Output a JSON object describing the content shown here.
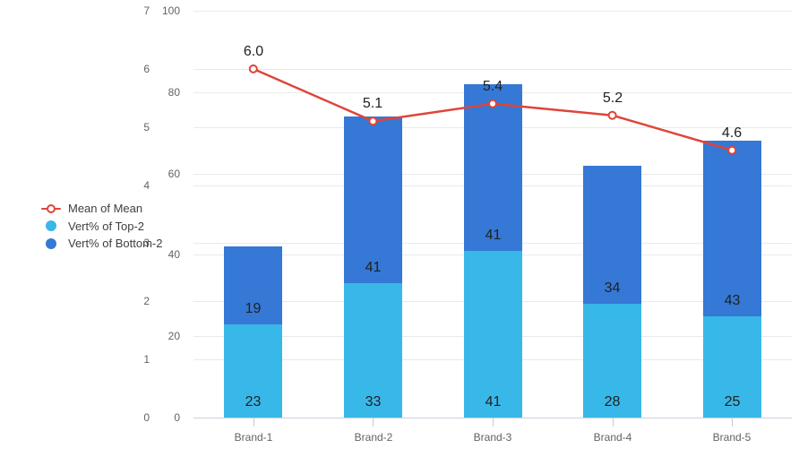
{
  "chart": {
    "background": "#ffffff",
    "legend": {
      "items": [
        {
          "label": "Mean of Mean",
          "marker": "line-circle",
          "color": "#e04438"
        },
        {
          "label": "Vert% of Top-2",
          "marker": "circle",
          "color": "#38b8e8"
        },
        {
          "label": "Vert% of Bottom-2",
          "marker": "circle",
          "color": "#3578d5"
        }
      ]
    }
  },
  "chart_data": {
    "type": "combo-stacked-bar-line",
    "stacked": true,
    "grid": true,
    "legend_position": "left-middle",
    "categories": [
      "Brand-1",
      "Brand-2",
      "Brand-3",
      "Brand-4",
      "Brand-5"
    ],
    "series": [
      {
        "name": "Vert% of Top-2",
        "type": "bar",
        "axis": "right",
        "color": "#38b8e8",
        "values": [
          23,
          33,
          41,
          28,
          25
        ]
      },
      {
        "name": "Vert% of Bottom-2",
        "type": "bar",
        "axis": "right",
        "color": "#3578d5",
        "values": [
          19,
          41,
          41,
          34,
          43
        ]
      },
      {
        "name": "Mean of Mean",
        "type": "line",
        "axis": "left",
        "color": "#e04438",
        "values": [
          6.0,
          5.1,
          5.4,
          5.2,
          4.6
        ],
        "labels": [
          "6.0",
          "5.1",
          "5.4",
          "5.2",
          "4.6"
        ]
      }
    ],
    "left_axis": {
      "range": [
        0,
        7
      ],
      "ticks": [
        "0",
        "1",
        "2",
        "3",
        "4",
        "5",
        "6",
        "7"
      ]
    },
    "right_axis": {
      "range": [
        0,
        100
      ],
      "ticks": [
        "0",
        "20",
        "40",
        "60",
        "80",
        "100"
      ]
    },
    "colors": {
      "grid": "#e8eaed",
      "axis_baseline": "#c9d3dc",
      "axis_text": "#5f6368",
      "data_label_text": "#202124",
      "line_marker_fill": "#ffffff"
    }
  }
}
